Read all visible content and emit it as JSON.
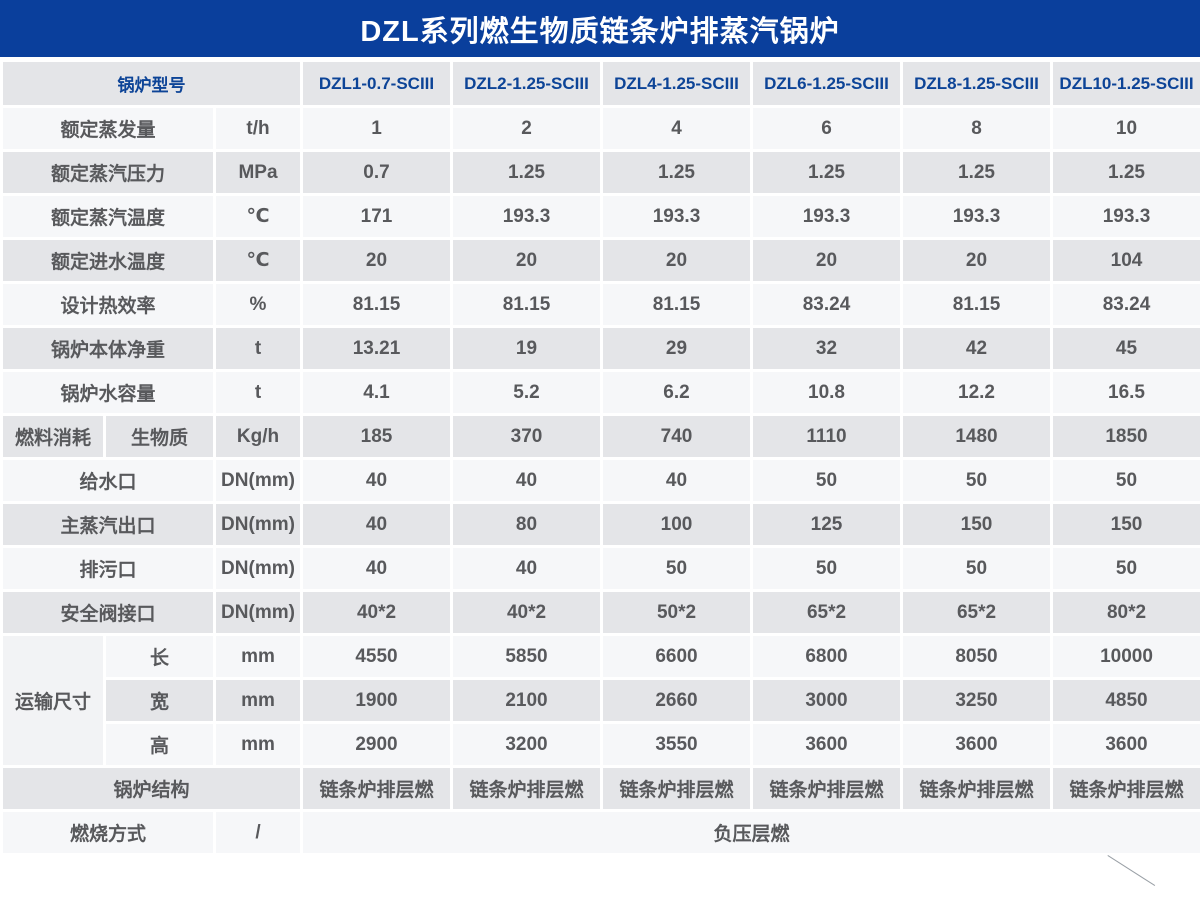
{
  "title": "DZL系列燃生物质链条炉排蒸汽锅炉",
  "colors": {
    "title_bar": "#0a3f9c",
    "header_text": "#0d4497",
    "row_light": "#f6f7f9",
    "row_dark": "#e4e5e8",
    "cell_text": "#58595c"
  },
  "table": {
    "model_header": "锅炉型号",
    "models": [
      "DZL1-0.7-SCIII",
      "DZL2-1.25-SCIII",
      "DZL4-1.25-SCIII",
      "DZL6-1.25-SCIII",
      "DZL8-1.25-SCIII",
      "DZL10-1.25-SCIII"
    ],
    "rows": [
      {
        "lead": [
          {
            "t": "额定蒸发量",
            "cs": 2
          },
          {
            "t": "t/h",
            "unit": true
          }
        ],
        "values": [
          "1",
          "2",
          "4",
          "6",
          "8",
          "10"
        ]
      },
      {
        "lead": [
          {
            "t": "额定蒸汽压力",
            "cs": 2
          },
          {
            "t": "MPa",
            "unit": true
          }
        ],
        "values": [
          "0.7",
          "1.25",
          "1.25",
          "1.25",
          "1.25",
          "1.25"
        ]
      },
      {
        "lead": [
          {
            "t": "额定蒸汽温度",
            "cs": 2
          },
          {
            "t": "℃",
            "unit": true
          }
        ],
        "values": [
          "171",
          "193.3",
          "193.3",
          "193.3",
          "193.3",
          "193.3"
        ]
      },
      {
        "lead": [
          {
            "t": "额定进水温度",
            "cs": 2
          },
          {
            "t": "℃",
            "unit": true
          }
        ],
        "values": [
          "20",
          "20",
          "20",
          "20",
          "20",
          "104"
        ]
      },
      {
        "lead": [
          {
            "t": "设计热效率",
            "cs": 2
          },
          {
            "t": "%",
            "unit": true
          }
        ],
        "values": [
          "81.15",
          "81.15",
          "81.15",
          "83.24",
          "81.15",
          "83.24"
        ]
      },
      {
        "lead": [
          {
            "t": "锅炉本体净重",
            "cs": 2
          },
          {
            "t": "t",
            "unit": true
          }
        ],
        "values": [
          "13.21",
          "19",
          "29",
          "32",
          "42",
          "45"
        ]
      },
      {
        "lead": [
          {
            "t": "锅炉水容量",
            "cs": 2
          },
          {
            "t": "t",
            "unit": true
          }
        ],
        "values": [
          "4.1",
          "5.2",
          "6.2",
          "10.8",
          "12.2",
          "16.5"
        ]
      },
      {
        "lead": [
          {
            "t": "燃料消耗"
          },
          {
            "t": "生物质"
          },
          {
            "t": "Kg/h",
            "unit": true
          }
        ],
        "values": [
          "185",
          "370",
          "740",
          "1110",
          "1480",
          "1850"
        ]
      },
      {
        "lead": [
          {
            "t": "给水口",
            "cs": 2
          },
          {
            "t": "DN(mm)",
            "unit": true
          }
        ],
        "values": [
          "40",
          "40",
          "40",
          "50",
          "50",
          "50"
        ]
      },
      {
        "lead": [
          {
            "t": "主蒸汽出口",
            "cs": 2
          },
          {
            "t": "DN(mm)",
            "unit": true
          }
        ],
        "values": [
          "40",
          "80",
          "100",
          "125",
          "150",
          "150"
        ]
      },
      {
        "lead": [
          {
            "t": "排污口",
            "cs": 2
          },
          {
            "t": "DN(mm)",
            "unit": true
          }
        ],
        "values": [
          "40",
          "40",
          "50",
          "50",
          "50",
          "50"
        ]
      },
      {
        "lead": [
          {
            "t": "安全阀接口",
            "cs": 2
          },
          {
            "t": "DN(mm)",
            "unit": true
          }
        ],
        "values": [
          "40*2",
          "40*2",
          "50*2",
          "65*2",
          "65*2",
          "80*2"
        ]
      },
      {
        "lead": [
          {
            "t": "运输尺寸",
            "rs": 3,
            "group": true
          },
          {
            "t": "长"
          },
          {
            "t": "mm",
            "unit": true
          }
        ],
        "values": [
          "4550",
          "5850",
          "6600",
          "6800",
          "8050",
          "10000"
        ]
      },
      {
        "lead": [
          {
            "t": "宽"
          },
          {
            "t": "mm",
            "unit": true
          }
        ],
        "values": [
          "1900",
          "2100",
          "2660",
          "3000",
          "3250",
          "4850"
        ]
      },
      {
        "lead": [
          {
            "t": "高"
          },
          {
            "t": "mm",
            "unit": true
          }
        ],
        "values": [
          "2900",
          "3200",
          "3550",
          "3600",
          "3600",
          "3600"
        ]
      },
      {
        "lead": [
          {
            "t": "锅炉结构",
            "cs": 3
          }
        ],
        "values": [
          "链条炉排层燃",
          "链条炉排层燃",
          "链条炉排层燃",
          "链条炉排层燃",
          "链条炉排层燃",
          "链条炉排层燃"
        ]
      },
      {
        "lead": [
          {
            "t": "燃烧方式",
            "cs": 2
          },
          {
            "t": "/",
            "unit": true
          }
        ],
        "merged_value": "负压层燃"
      }
    ]
  }
}
